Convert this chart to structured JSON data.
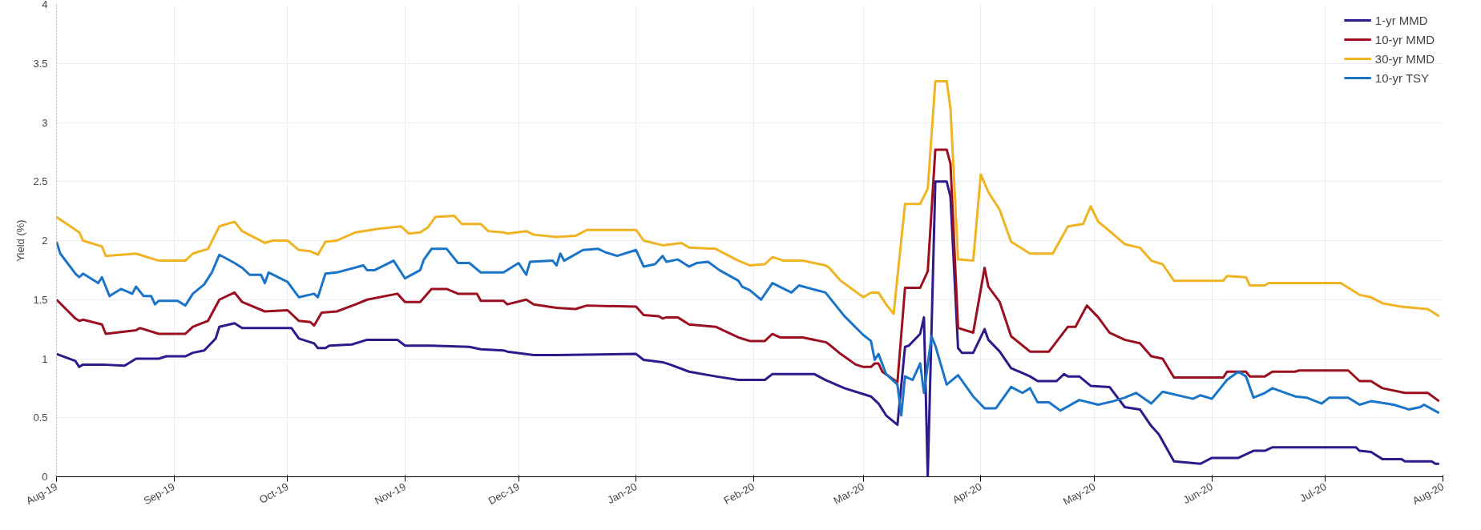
{
  "chart_data": {
    "type": "line",
    "ylabel": "Yield (%)",
    "xlim": [
      "2019-08-01",
      "2020-08-01"
    ],
    "xticks": [
      {
        "value": "2019-08-01",
        "label": "Aug-19"
      },
      {
        "value": "2019-09-01",
        "label": "Sep-19"
      },
      {
        "value": "2019-10-01",
        "label": "Oct-19"
      },
      {
        "value": "2019-11-01",
        "label": "Nov-19"
      },
      {
        "value": "2019-12-01",
        "label": "Dec-19"
      },
      {
        "value": "2020-01-01",
        "label": "Jan-20"
      },
      {
        "value": "2020-02-01",
        "label": "Feb-20"
      },
      {
        "value": "2020-03-01",
        "label": "Mar-20"
      },
      {
        "value": "2020-04-01",
        "label": "Apr-20"
      },
      {
        "value": "2020-05-01",
        "label": "May-20"
      },
      {
        "value": "2020-06-01",
        "label": "Jun-20"
      },
      {
        "value": "2020-07-01",
        "label": "Jul-20"
      },
      {
        "value": "2020-08-01",
        "label": "Aug-20"
      }
    ],
    "ylim": [
      0,
      4
    ],
    "yticks": [
      0,
      0.5,
      1,
      1.5,
      2,
      2.5,
      3,
      3.5,
      4
    ],
    "grid": true,
    "legend": "top right",
    "line_style": "solid",
    "marker": "none",
    "series": [
      {
        "name": "1-yr MMD",
        "color": "#2e1a8a",
        "x": [
          "2019-08-01",
          "2019-08-06",
          "2019-08-07",
          "2019-08-08",
          "2019-08-13",
          "2019-08-19",
          "2019-08-22",
          "2019-08-28",
          "2019-08-30",
          "2019-09-04",
          "2019-09-06",
          "2019-09-09",
          "2019-09-12",
          "2019-09-13",
          "2019-09-17",
          "2019-09-19",
          "2019-09-26",
          "2019-10-02",
          "2019-10-04",
          "2019-10-08",
          "2019-10-09",
          "2019-10-11",
          "2019-10-12",
          "2019-10-18",
          "2019-10-22",
          "2019-10-30",
          "2019-11-01",
          "2019-11-08",
          "2019-11-18",
          "2019-11-21",
          "2019-11-27",
          "2019-11-28",
          "2019-12-05",
          "2019-12-11",
          "2020-01-01",
          "2020-01-03",
          "2020-01-08",
          "2020-01-10",
          "2020-01-15",
          "2020-01-22",
          "2020-01-28",
          "2020-02-04",
          "2020-02-06",
          "2020-02-17",
          "2020-02-20",
          "2020-02-25",
          "2020-03-01",
          "2020-03-03",
          "2020-03-05",
          "2020-03-07",
          "2020-03-10",
          "2020-03-12",
          "2020-03-13",
          "2020-03-16",
          "2020-03-17",
          "2020-03-18",
          "2020-03-20",
          "2020-03-23",
          "2020-03-24",
          "2020-03-26",
          "2020-03-27",
          "2020-03-30",
          "2020-04-02",
          "2020-04-03",
          "2020-04-06",
          "2020-04-09",
          "2020-04-14",
          "2020-04-16",
          "2020-04-21",
          "2020-04-23",
          "2020-04-24",
          "2020-04-27",
          "2020-04-30",
          "2020-05-05",
          "2020-05-09",
          "2020-05-13",
          "2020-05-16",
          "2020-05-18",
          "2020-05-22",
          "2020-05-29",
          "2020-06-01",
          "2020-06-08",
          "2020-06-12",
          "2020-06-15",
          "2020-06-17",
          "2020-07-09",
          "2020-07-10",
          "2020-07-13",
          "2020-07-16",
          "2020-07-21",
          "2020-07-22",
          "2020-07-29",
          "2020-07-30",
          "2020-07-31"
        ],
        "values": [
          1.04,
          0.98,
          0.93,
          0.95,
          0.95,
          0.94,
          1.0,
          1.0,
          1.02,
          1.02,
          1.05,
          1.07,
          1.17,
          1.27,
          1.3,
          1.26,
          1.26,
          1.26,
          1.17,
          1.13,
          1.09,
          1.09,
          1.11,
          1.12,
          1.16,
          1.16,
          1.11,
          1.11,
          1.1,
          1.08,
          1.07,
          1.06,
          1.03,
          1.03,
          1.04,
          0.99,
          0.97,
          0.95,
          0.89,
          0.85,
          0.82,
          0.82,
          0.87,
          0.87,
          0.82,
          0.75,
          0.7,
          0.68,
          0.62,
          0.52,
          0.44,
          1.1,
          1.11,
          1.21,
          1.35,
          0.0,
          2.5,
          2.5,
          2.37,
          1.09,
          1.05,
          1.05,
          1.25,
          1.16,
          1.06,
          0.92,
          0.85,
          0.81,
          0.81,
          0.87,
          0.85,
          0.85,
          0.77,
          0.76,
          0.59,
          0.57,
          0.43,
          0.36,
          0.13,
          0.11,
          0.16,
          0.16,
          0.22,
          0.22,
          0.25,
          0.25,
          0.22,
          0.21,
          0.15,
          0.15,
          0.13,
          0.13,
          0.11,
          0.11
        ]
      },
      {
        "name": "10-yr MMD",
        "color": "#9b1020",
        "x": [
          "2019-08-01",
          "2019-08-06",
          "2019-08-07",
          "2019-08-08",
          "2019-08-13",
          "2019-08-14",
          "2019-08-22",
          "2019-08-23",
          "2019-08-28",
          "2019-09-04",
          "2019-09-06",
          "2019-09-10",
          "2019-09-13",
          "2019-09-17",
          "2019-09-19",
          "2019-09-25",
          "2019-10-01",
          "2019-10-04",
          "2019-10-07",
          "2019-10-08",
          "2019-10-10",
          "2019-10-14",
          "2019-10-19",
          "2019-10-22",
          "2019-10-30",
          "2019-11-01",
          "2019-11-05",
          "2019-11-08",
          "2019-11-12",
          "2019-11-15",
          "2019-11-20",
          "2019-11-21",
          "2019-11-27",
          "2019-11-28",
          "2019-12-03",
          "2019-12-05",
          "2019-12-11",
          "2019-12-16",
          "2019-12-19",
          "2020-01-01",
          "2020-01-03",
          "2020-01-07",
          "2020-01-08",
          "2020-01-09",
          "2020-01-12",
          "2020-01-15",
          "2020-01-22",
          "2020-01-28",
          "2020-01-31",
          "2020-02-04",
          "2020-02-06",
          "2020-02-08",
          "2020-02-14",
          "2020-02-20",
          "2020-02-21",
          "2020-02-24",
          "2020-02-28",
          "2020-03-01",
          "2020-03-03",
          "2020-03-04",
          "2020-03-05",
          "2020-03-06",
          "2020-03-10",
          "2020-03-12",
          "2020-03-16",
          "2020-03-18",
          "2020-03-20",
          "2020-03-23",
          "2020-03-24",
          "2020-03-26",
          "2020-03-30",
          "2020-04-02",
          "2020-04-03",
          "2020-04-06",
          "2020-04-09",
          "2020-04-14",
          "2020-04-19",
          "2020-04-24",
          "2020-04-26",
          "2020-04-29",
          "2020-05-02",
          "2020-05-05",
          "2020-05-09",
          "2020-05-13",
          "2020-05-16",
          "2020-05-19",
          "2020-05-22",
          "2020-06-04",
          "2020-06-05",
          "2020-06-10",
          "2020-06-11",
          "2020-06-15",
          "2020-06-17",
          "2020-06-23",
          "2020-06-24",
          "2020-07-07",
          "2020-07-10",
          "2020-07-13",
          "2020-07-16",
          "2020-07-22",
          "2020-07-28",
          "2020-07-31"
        ],
        "values": [
          1.5,
          1.34,
          1.32,
          1.33,
          1.29,
          1.21,
          1.24,
          1.26,
          1.21,
          1.21,
          1.27,
          1.32,
          1.5,
          1.56,
          1.48,
          1.4,
          1.41,
          1.32,
          1.31,
          1.28,
          1.39,
          1.4,
          1.46,
          1.5,
          1.55,
          1.48,
          1.48,
          1.59,
          1.59,
          1.55,
          1.55,
          1.49,
          1.49,
          1.46,
          1.5,
          1.46,
          1.43,
          1.42,
          1.45,
          1.44,
          1.37,
          1.36,
          1.34,
          1.35,
          1.35,
          1.29,
          1.27,
          1.18,
          1.15,
          1.15,
          1.21,
          1.18,
          1.18,
          1.14,
          1.12,
          1.04,
          0.95,
          0.93,
          0.93,
          0.96,
          0.96,
          0.89,
          0.8,
          1.6,
          1.6,
          1.74,
          2.77,
          2.77,
          2.65,
          1.26,
          1.22,
          1.77,
          1.61,
          1.48,
          1.19,
          1.06,
          1.06,
          1.27,
          1.27,
          1.45,
          1.35,
          1.22,
          1.16,
          1.13,
          1.02,
          1.0,
          0.84,
          0.84,
          0.89,
          0.89,
          0.85,
          0.85,
          0.89,
          0.89,
          0.9,
          0.9,
          0.81,
          0.81,
          0.75,
          0.71,
          0.71,
          0.64
        ]
      },
      {
        "name": "30-yr MMD",
        "color": "#f0b323",
        "x": [
          "2019-08-01",
          "2019-08-07",
          "2019-08-08",
          "2019-08-13",
          "2019-08-14",
          "2019-08-22",
          "2019-08-28",
          "2019-09-04",
          "2019-09-06",
          "2019-09-10",
          "2019-09-13",
          "2019-09-17",
          "2019-09-19",
          "2019-09-25",
          "2019-09-27",
          "2019-10-01",
          "2019-10-04",
          "2019-10-07",
          "2019-10-09",
          "2019-10-11",
          "2019-10-14",
          "2019-10-19",
          "2019-10-25",
          "2019-10-31",
          "2019-11-02",
          "2019-11-05",
          "2019-11-07",
          "2019-11-09",
          "2019-11-14",
          "2019-11-16",
          "2019-11-21",
          "2019-11-23",
          "2019-11-27",
          "2019-11-28",
          "2019-12-03",
          "2019-12-05",
          "2019-12-11",
          "2019-12-16",
          "2019-12-19",
          "2020-01-01",
          "2020-01-03",
          "2020-01-08",
          "2020-01-13",
          "2020-01-15",
          "2020-01-22",
          "2020-01-28",
          "2020-01-31",
          "2020-02-04",
          "2020-02-06",
          "2020-02-09",
          "2020-02-14",
          "2020-02-20",
          "2020-02-21",
          "2020-02-24",
          "2020-03-01",
          "2020-03-03",
          "2020-03-05",
          "2020-03-07",
          "2020-03-09",
          "2020-03-12",
          "2020-03-16",
          "2020-03-18",
          "2020-03-20",
          "2020-03-23",
          "2020-03-24",
          "2020-03-26",
          "2020-03-30",
          "2020-04-01",
          "2020-04-03",
          "2020-04-06",
          "2020-04-09",
          "2020-04-14",
          "2020-04-20",
          "2020-04-24",
          "2020-04-28",
          "2020-04-30",
          "2020-05-02",
          "2020-05-05",
          "2020-05-09",
          "2020-05-13",
          "2020-05-16",
          "2020-05-19",
          "2020-05-22",
          "2020-06-04",
          "2020-06-05",
          "2020-06-10",
          "2020-06-11",
          "2020-06-15",
          "2020-06-16",
          "2020-07-05",
          "2020-07-10",
          "2020-07-13",
          "2020-07-16",
          "2020-07-21",
          "2020-07-28",
          "2020-07-31"
        ],
        "values": [
          2.2,
          2.07,
          2.0,
          1.95,
          1.87,
          1.89,
          1.83,
          1.83,
          1.89,
          1.93,
          2.12,
          2.16,
          2.08,
          1.98,
          2.0,
          2.0,
          1.92,
          1.91,
          1.88,
          1.99,
          2.0,
          2.07,
          2.1,
          2.12,
          2.06,
          2.07,
          2.11,
          2.2,
          2.21,
          2.14,
          2.14,
          2.08,
          2.07,
          2.06,
          2.08,
          2.05,
          2.03,
          2.04,
          2.09,
          2.09,
          2.0,
          1.96,
          1.98,
          1.94,
          1.93,
          1.83,
          1.79,
          1.8,
          1.86,
          1.83,
          1.83,
          1.79,
          1.77,
          1.66,
          1.52,
          1.56,
          1.56,
          1.46,
          1.38,
          2.31,
          2.31,
          2.44,
          3.35,
          3.35,
          3.12,
          1.84,
          1.83,
          2.56,
          2.41,
          2.26,
          1.99,
          1.89,
          1.89,
          2.12,
          2.14,
          2.29,
          2.16,
          2.08,
          1.97,
          1.94,
          1.83,
          1.8,
          1.66,
          1.66,
          1.7,
          1.69,
          1.62,
          1.62,
          1.64,
          1.64,
          1.54,
          1.52,
          1.47,
          1.44,
          1.42,
          1.36
        ]
      },
      {
        "name": "10-yr TSY",
        "color": "#1a75c8",
        "x": [
          "2019-08-01",
          "2019-08-02",
          "2019-08-06",
          "2019-08-07",
          "2019-08-08",
          "2019-08-12",
          "2019-08-13",
          "2019-08-15",
          "2019-08-18",
          "2019-08-21",
          "2019-08-22",
          "2019-08-24",
          "2019-08-26",
          "2019-08-27",
          "2019-08-28",
          "2019-09-02",
          "2019-09-04",
          "2019-09-06",
          "2019-09-09",
          "2019-09-11",
          "2019-09-13",
          "2019-09-17",
          "2019-09-19",
          "2019-09-21",
          "2019-09-24",
          "2019-09-25",
          "2019-09-26",
          "2019-10-01",
          "2019-10-04",
          "2019-10-08",
          "2019-10-09",
          "2019-10-11",
          "2019-10-14",
          "2019-10-21",
          "2019-10-22",
          "2019-10-24",
          "2019-10-29",
          "2019-11-01",
          "2019-11-05",
          "2019-11-06",
          "2019-11-08",
          "2019-11-12",
          "2019-11-15",
          "2019-11-18",
          "2019-11-21",
          "2019-11-27",
          "2019-12-01",
          "2019-12-03",
          "2019-12-04",
          "2019-12-10",
          "2019-12-11",
          "2019-12-12",
          "2019-12-13",
          "2019-12-18",
          "2019-12-22",
          "2019-12-24",
          "2019-12-27",
          "2020-01-01",
          "2020-01-03",
          "2020-01-06",
          "2020-01-08",
          "2020-01-09",
          "2020-01-12",
          "2020-01-15",
          "2020-01-17",
          "2020-01-20",
          "2020-01-23",
          "2020-01-28",
          "2020-01-29",
          "2020-01-31",
          "2020-02-03",
          "2020-02-06",
          "2020-02-11",
          "2020-02-13",
          "2020-02-20",
          "2020-02-25",
          "2020-03-01",
          "2020-03-03",
          "2020-03-04",
          "2020-03-05",
          "2020-03-07",
          "2020-03-10",
          "2020-03-11",
          "2020-03-12",
          "2020-03-14",
          "2020-03-16",
          "2020-03-17",
          "2020-03-19",
          "2020-03-20",
          "2020-03-23",
          "2020-03-26",
          "2020-03-30",
          "2020-04-02",
          "2020-04-05",
          "2020-04-09",
          "2020-04-12",
          "2020-04-14",
          "2020-04-16",
          "2020-04-19",
          "2020-04-22",
          "2020-04-27",
          "2020-05-02",
          "2020-05-06",
          "2020-05-09",
          "2020-05-12",
          "2020-05-16",
          "2020-05-19",
          "2020-05-27",
          "2020-05-29",
          "2020-06-01",
          "2020-06-05",
          "2020-06-08",
          "2020-06-10",
          "2020-06-12",
          "2020-06-15",
          "2020-06-17",
          "2020-06-23",
          "2020-06-26",
          "2020-06-30",
          "2020-07-02",
          "2020-07-07",
          "2020-07-10",
          "2020-07-13",
          "2020-07-19",
          "2020-07-23",
          "2020-07-26",
          "2020-07-27",
          "2020-07-31"
        ],
        "values": [
          1.99,
          1.89,
          1.72,
          1.69,
          1.72,
          1.64,
          1.69,
          1.53,
          1.59,
          1.55,
          1.61,
          1.53,
          1.53,
          1.46,
          1.49,
          1.49,
          1.45,
          1.55,
          1.63,
          1.73,
          1.88,
          1.81,
          1.77,
          1.71,
          1.71,
          1.64,
          1.73,
          1.65,
          1.52,
          1.55,
          1.52,
          1.72,
          1.73,
          1.79,
          1.75,
          1.75,
          1.83,
          1.68,
          1.75,
          1.84,
          1.93,
          1.93,
          1.81,
          1.81,
          1.73,
          1.73,
          1.81,
          1.71,
          1.82,
          1.83,
          1.79,
          1.89,
          1.83,
          1.92,
          1.93,
          1.9,
          1.87,
          1.92,
          1.78,
          1.8,
          1.87,
          1.82,
          1.84,
          1.78,
          1.81,
          1.82,
          1.75,
          1.66,
          1.61,
          1.58,
          1.5,
          1.64,
          1.56,
          1.62,
          1.56,
          1.36,
          1.2,
          1.15,
          0.99,
          1.04,
          0.87,
          0.78,
          0.52,
          0.85,
          0.82,
          0.96,
          0.71,
          1.19,
          1.11,
          0.78,
          0.86,
          0.68,
          0.58,
          0.58,
          0.76,
          0.71,
          0.75,
          0.63,
          0.63,
          0.56,
          0.65,
          0.61,
          0.64,
          0.67,
          0.71,
          0.62,
          0.72,
          0.66,
          0.69,
          0.66,
          0.82,
          0.89,
          0.85,
          0.67,
          0.71,
          0.75,
          0.68,
          0.67,
          0.62,
          0.67,
          0.67,
          0.61,
          0.64,
          0.61,
          0.57,
          0.59,
          0.61,
          0.54
        ]
      }
    ]
  }
}
